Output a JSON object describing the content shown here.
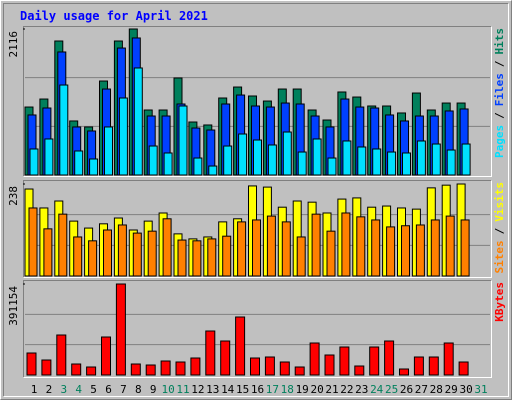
{
  "chart_data": {
    "type": "bar",
    "title": "Daily usage for April 2021",
    "categories": [
      "1",
      "2",
      "3",
      "4",
      "5",
      "6",
      "7",
      "8",
      "9",
      "10",
      "11",
      "12",
      "13",
      "14",
      "15",
      "16",
      "17",
      "18",
      "19",
      "20",
      "21",
      "22",
      "23",
      "24",
      "25",
      "26",
      "27",
      "28",
      "29",
      "30",
      "31"
    ],
    "category_colors": [
      "#000000",
      "#000000",
      "#00805c",
      "#00805c",
      "#000000",
      "#000000",
      "#000000",
      "#000000",
      "#000000",
      "#00805c",
      "#00805c",
      "#000000",
      "#000000",
      "#000000",
      "#000000",
      "#000000",
      "#00805c",
      "#00805c",
      "#000000",
      "#000000",
      "#000000",
      "#000000",
      "#000000",
      "#00805c",
      "#00805c",
      "#000000",
      "#000000",
      "#000000",
      "#000000",
      "#000000",
      "#00805c"
    ],
    "legend_separator": "/",
    "grid": true,
    "panels": [
      {
        "ylim": [
          0,
          2116
        ],
        "yticks": [
          2116
        ],
        "series": [
          {
            "name": "Hits",
            "color": "#00805c",
            "values": [
              985,
              1101,
              1942,
              783,
              696,
              1362,
              1942,
              2116,
              942,
              942,
              1406,
              768,
              725,
              1116,
              1275,
              1145,
              1072,
              1246,
              1246,
              942,
              797,
              1203,
              1130,
              1000,
              1000,
              899,
              1188,
              942,
              1043,
              1043,
              null
            ]
          },
          {
            "name": "Files",
            "color": "#0040ff",
            "values": [
              870,
              971,
              1783,
              696,
              638,
              1246,
              1840,
              1986,
              855,
              855,
              1029,
              681,
              652,
              1029,
              1159,
              1000,
              985,
              1043,
              1029,
              855,
              696,
              1101,
              985,
              971,
              870,
              783,
              855,
              855,
              928,
              957,
              null
            ]
          },
          {
            "name": "Pages",
            "color": "#00e0ff",
            "values": [
              377,
              522,
              1304,
              348,
              232,
              696,
              1116,
              1551,
              420,
              319,
              1000,
              246,
              130,
              420,
              594,
              507,
              435,
              623,
              333,
              522,
              246,
              493,
              406,
              377,
              333,
              319,
              493,
              449,
              362,
              449,
              null
            ]
          }
        ]
      },
      {
        "ylim": [
          0,
          238
        ],
        "yticks": [
          238
        ],
        "series": [
          {
            "name": "Visits",
            "color": "#ffff00",
            "values": [
              225,
              176,
              194,
              142,
              124,
              135,
              150,
              119,
              142,
              163,
              109,
              96,
              101,
              140,
              148,
              233,
              230,
              178,
              194,
              191,
              163,
              199,
              202,
              178,
              181,
              176,
              173,
              228,
              235,
              238,
              null
            ]
          },
          {
            "name": "Sites",
            "color": "#ff8000",
            "values": [
              176,
              122,
              160,
              101,
              91,
              119,
              132,
              111,
              116,
              148,
              93,
              91,
              96,
              103,
              140,
              145,
              155,
              140,
              101,
              160,
              116,
              163,
              153,
              145,
              127,
              130,
              132,
              145,
              155,
              145,
              null
            ]
          }
        ]
      },
      {
        "ylim": [
          0,
          391154
        ],
        "yticks": [
          391154
        ],
        "series": [
          {
            "name": "KBytes",
            "color": "#ff0000",
            "values": [
              94568,
              64476,
              171936,
              47282,
              34387,
              163339,
              391154,
              47282,
              42984,
              60178,
              55879,
              73072,
              189130,
              146146,
              249306,
              73072,
              77371,
              55879,
              34387,
              137549,
              85967,
              120355,
              38685,
              120355,
              146146,
              25790,
              77371,
              77371,
              137549,
              55879,
              null
            ]
          }
        ]
      }
    ]
  }
}
